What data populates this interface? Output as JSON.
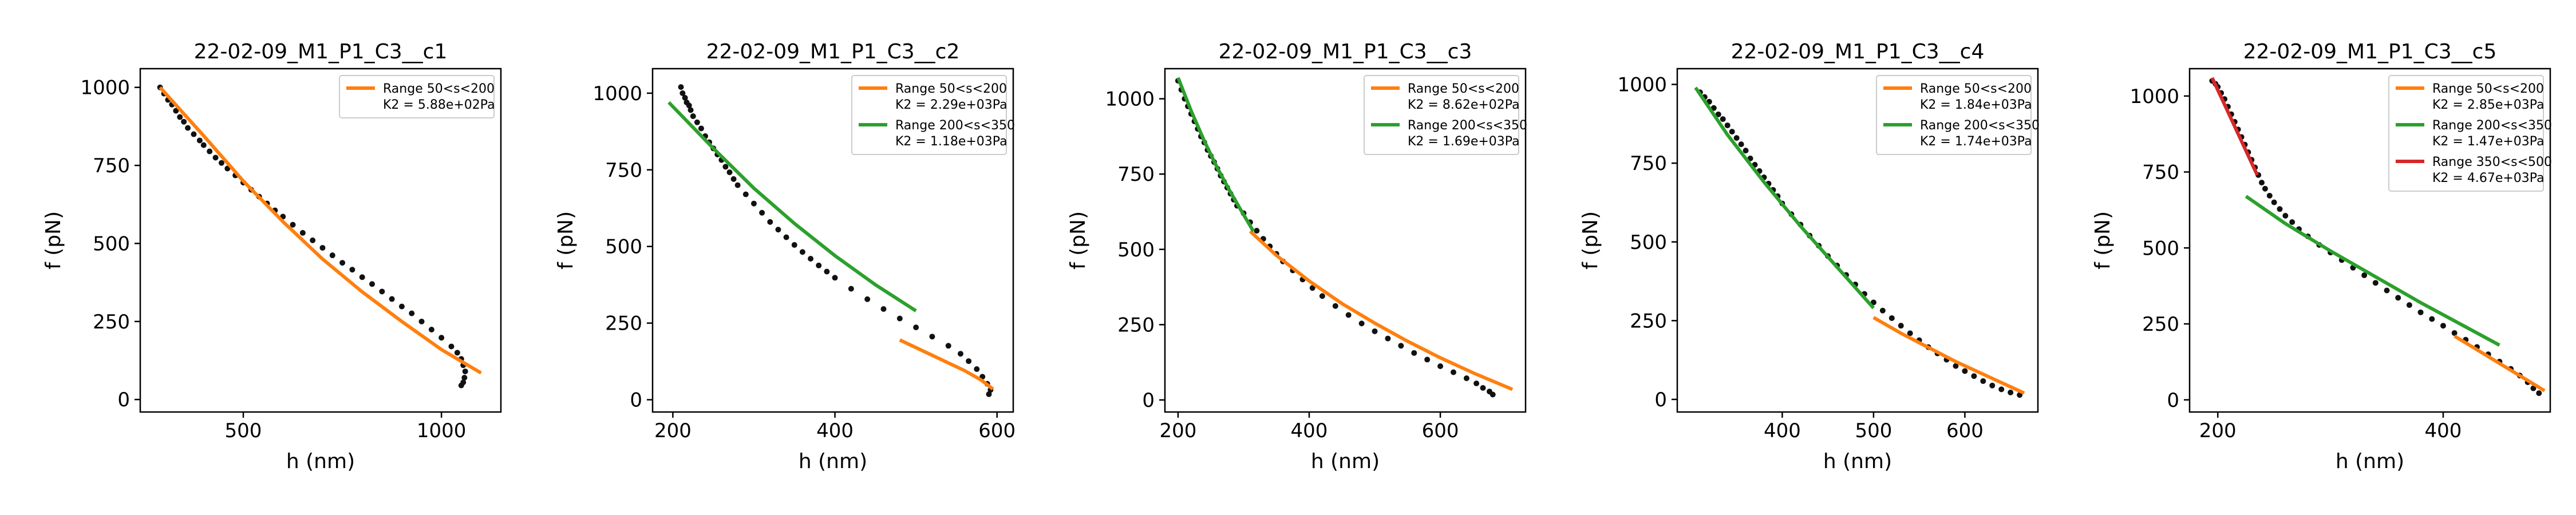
{
  "chart_data": [
    {
      "type": "scatter",
      "title": "22-02-09_M1_P1_C3__c1",
      "xlabel": "h (nm)",
      "ylabel": "f (pN)",
      "xlim": [
        240,
        1150
      ],
      "ylim": [
        -40,
        1060
      ],
      "xticks": [
        500,
        1000
      ],
      "yticks": [
        0,
        250,
        500,
        750,
        1000
      ],
      "legend_position": "top-right",
      "points": [
        [
          290,
          1000
        ],
        [
          300,
          980
        ],
        [
          310,
          960
        ],
        [
          320,
          945
        ],
        [
          330,
          925
        ],
        [
          340,
          905
        ],
        [
          350,
          890
        ],
        [
          360,
          870
        ],
        [
          375,
          850
        ],
        [
          390,
          830
        ],
        [
          400,
          815
        ],
        [
          415,
          795
        ],
        [
          430,
          775
        ],
        [
          445,
          758
        ],
        [
          460,
          740
        ],
        [
          480,
          718
        ],
        [
          500,
          695
        ],
        [
          520,
          672
        ],
        [
          540,
          650
        ],
        [
          560,
          628
        ],
        [
          580,
          606
        ],
        [
          600,
          586
        ],
        [
          625,
          560
        ],
        [
          650,
          534
        ],
        [
          675,
          510
        ],
        [
          700,
          486
        ],
        [
          725,
          462
        ],
        [
          750,
          438
        ],
        [
          775,
          416
        ],
        [
          800,
          392
        ],
        [
          825,
          370
        ],
        [
          850,
          346
        ],
        [
          875,
          322
        ],
        [
          900,
          298
        ],
        [
          925,
          276
        ],
        [
          950,
          250
        ],
        [
          975,
          224
        ],
        [
          1000,
          198
        ],
        [
          1025,
          170
        ],
        [
          1040,
          150
        ],
        [
          1050,
          130
        ],
        [
          1055,
          110
        ],
        [
          1060,
          90
        ],
        [
          1058,
          70
        ],
        [
          1055,
          55
        ],
        [
          1050,
          45
        ]
      ],
      "series": [
        {
          "name": "Range 50<s<200",
          "detail": "K2 = 5.88e+02Pa",
          "color": "#ff7f0e",
          "x": [
            290,
            400,
            500,
            600,
            700,
            800,
            900,
            1000,
            1100
          ],
          "y": [
            1000,
            845,
            700,
            570,
            450,
            345,
            250,
            160,
            85
          ]
        }
      ]
    },
    {
      "type": "scatter",
      "title": "22-02-09_M1_P1_C3__c2",
      "xlabel": "h (nm)",
      "ylabel": "f (pN)",
      "xlim": [
        175,
        620
      ],
      "ylim": [
        -40,
        1080
      ],
      "xticks": [
        200,
        400,
        600
      ],
      "yticks": [
        0,
        250,
        500,
        750,
        1000
      ],
      "legend_position": "top-right",
      "points": [
        [
          210,
          1020
        ],
        [
          212,
          1000
        ],
        [
          215,
          985
        ],
        [
          217,
          970
        ],
        [
          220,
          960
        ],
        [
          222,
          945
        ],
        [
          225,
          925
        ],
        [
          230,
          905
        ],
        [
          235,
          885
        ],
        [
          240,
          860
        ],
        [
          245,
          840
        ],
        [
          250,
          820
        ],
        [
          255,
          800
        ],
        [
          260,
          782
        ],
        [
          265,
          760
        ],
        [
          270,
          742
        ],
        [
          275,
          720
        ],
        [
          280,
          700
        ],
        [
          290,
          670
        ],
        [
          300,
          640
        ],
        [
          310,
          610
        ],
        [
          320,
          580
        ],
        [
          330,
          555
        ],
        [
          340,
          530
        ],
        [
          350,
          505
        ],
        [
          360,
          482
        ],
        [
          370,
          460
        ],
        [
          380,
          438
        ],
        [
          390,
          418
        ],
        [
          400,
          398
        ],
        [
          420,
          362
        ],
        [
          440,
          328
        ],
        [
          460,
          296
        ],
        [
          480,
          265
        ],
        [
          500,
          236
        ],
        [
          520,
          206
        ],
        [
          540,
          176
        ],
        [
          555,
          150
        ],
        [
          565,
          126
        ],
        [
          575,
          100
        ],
        [
          582,
          75
        ],
        [
          588,
          52
        ],
        [
          592,
          32
        ],
        [
          590,
          18
        ]
      ],
      "series": [
        {
          "name": "Range 50<s<200",
          "detail": "K2 = 2.29e+03Pa",
          "color": "#ff7f0e",
          "x": [
            480,
            500,
            520,
            540,
            560,
            580,
            595
          ],
          "y": [
            195,
            170,
            145,
            120,
            95,
            65,
            35
          ]
        },
        {
          "name": "Range 200<s<350",
          "detail": "K2 = 1.18e+03Pa",
          "color": "#2ca02c",
          "x": [
            195,
            250,
            300,
            350,
            400,
            450,
            500
          ],
          "y": [
            970,
            820,
            690,
            575,
            470,
            375,
            290
          ]
        }
      ]
    },
    {
      "type": "scatter",
      "title": "22-02-09_M1_P1_C3__c3",
      "xlabel": "h (nm)",
      "ylabel": "f (pN)",
      "xlim": [
        180,
        730
      ],
      "ylim": [
        -40,
        1100
      ],
      "xticks": [
        200,
        400,
        600
      ],
      "yticks": [
        0,
        250,
        500,
        750,
        1000
      ],
      "legend_position": "top-right",
      "points": [
        [
          200,
          1060
        ],
        [
          205,
          1030
        ],
        [
          210,
          1000
        ],
        [
          215,
          975
        ],
        [
          220,
          950
        ],
        [
          225,
          925
        ],
        [
          230,
          900
        ],
        [
          235,
          875
        ],
        [
          240,
          855
        ],
        [
          245,
          830
        ],
        [
          250,
          810
        ],
        [
          255,
          790
        ],
        [
          260,
          768
        ],
        [
          265,
          745
        ],
        [
          270,
          725
        ],
        [
          275,
          705
        ],
        [
          280,
          685
        ],
        [
          285,
          665
        ],
        [
          290,
          645
        ],
        [
          300,
          620
        ],
        [
          310,
          590
        ],
        [
          320,
          562
        ],
        [
          330,
          535
        ],
        [
          340,
          510
        ],
        [
          350,
          485
        ],
        [
          360,
          460
        ],
        [
          375,
          430
        ],
        [
          390,
          400
        ],
        [
          405,
          372
        ],
        [
          420,
          345
        ],
        [
          440,
          312
        ],
        [
          460,
          282
        ],
        [
          480,
          254
        ],
        [
          500,
          228
        ],
        [
          520,
          204
        ],
        [
          540,
          180
        ],
        [
          560,
          156
        ],
        [
          580,
          134
        ],
        [
          600,
          112
        ],
        [
          620,
          92
        ],
        [
          640,
          72
        ],
        [
          655,
          55
        ],
        [
          665,
          40
        ],
        [
          675,
          28
        ],
        [
          680,
          18
        ]
      ],
      "series": [
        {
          "name": "Range 50<s<200",
          "detail": "K2 = 8.62e+02Pa",
          "color": "#ff7f0e",
          "x": [
            310,
            350,
            400,
            450,
            500,
            550,
            600,
            650,
            710
          ],
          "y": [
            560,
            480,
            395,
            320,
            255,
            195,
            140,
            90,
            35
          ]
        },
        {
          "name": "Range 200<s<350",
          "detail": "K2 = 1.69e+03Pa",
          "color": "#2ca02c",
          "x": [
            200,
            220,
            240,
            260,
            280,
            300,
            315
          ],
          "y": [
            1070,
            960,
            860,
            770,
            690,
            615,
            560
          ]
        }
      ]
    },
    {
      "type": "scatter",
      "title": "22-02-09_M1_P1_C3__c4",
      "xlabel": "h (nm)",
      "ylabel": "f (pN)",
      "xlim": [
        285,
        680
      ],
      "ylim": [
        -40,
        1050
      ],
      "xticks": [
        400,
        500,
        600
      ],
      "yticks": [
        0,
        250,
        500,
        750,
        1000
      ],
      "legend_position": "top-right",
      "points": [
        [
          310,
          975
        ],
        [
          315,
          960
        ],
        [
          320,
          945
        ],
        [
          325,
          925
        ],
        [
          330,
          905
        ],
        [
          335,
          890
        ],
        [
          340,
          870
        ],
        [
          345,
          850
        ],
        [
          350,
          830
        ],
        [
          355,
          810
        ],
        [
          360,
          790
        ],
        [
          365,
          765
        ],
        [
          370,
          745
        ],
        [
          375,
          725
        ],
        [
          380,
          705
        ],
        [
          385,
          685
        ],
        [
          390,
          665
        ],
        [
          395,
          645
        ],
        [
          400,
          622
        ],
        [
          410,
          588
        ],
        [
          420,
          555
        ],
        [
          430,
          520
        ],
        [
          440,
          488
        ],
        [
          450,
          455
        ],
        [
          460,
          425
        ],
        [
          470,
          395
        ],
        [
          480,
          365
        ],
        [
          490,
          335
        ],
        [
          500,
          308
        ],
        [
          510,
          282
        ],
        [
          520,
          258
        ],
        [
          530,
          234
        ],
        [
          540,
          210
        ],
        [
          550,
          188
        ],
        [
          560,
          166
        ],
        [
          570,
          146
        ],
        [
          580,
          126
        ],
        [
          590,
          106
        ],
        [
          600,
          90
        ],
        [
          610,
          74
        ],
        [
          620,
          58
        ],
        [
          630,
          44
        ],
        [
          640,
          32
        ],
        [
          650,
          22
        ],
        [
          660,
          14
        ]
      ],
      "series": [
        {
          "name": "Range 50<s<200",
          "detail": "K2 = 1.84e+03Pa",
          "color": "#ff7f0e",
          "x": [
            500,
            530,
            560,
            590,
            620,
            650,
            665
          ],
          "y": [
            260,
            210,
            165,
            120,
            80,
            40,
            20
          ]
        },
        {
          "name": "Range 200<s<350",
          "detail": "K2 = 1.74e+03Pa",
          "color": "#2ca02c",
          "x": [
            305,
            340,
            380,
            420,
            460,
            500
          ],
          "y": [
            990,
            840,
            690,
            550,
            420,
            290
          ]
        }
      ]
    },
    {
      "type": "scatter",
      "title": "22-02-09_M1_P1_C3__c5",
      "xlabel": "h (nm)",
      "ylabel": "f (pN)",
      "xlim": [
        175,
        495
      ],
      "ylim": [
        -40,
        1090
      ],
      "xticks": [
        200,
        400
      ],
      "yticks": [
        0,
        250,
        500,
        750,
        1000
      ],
      "legend_position": "top-right",
      "points": [
        [
          195,
          1050
        ],
        [
          198,
          1040
        ],
        [
          200,
          1030
        ],
        [
          203,
          1010
        ],
        [
          206,
          990
        ],
        [
          209,
          965
        ],
        [
          212,
          940
        ],
        [
          215,
          915
        ],
        [
          218,
          890
        ],
        [
          221,
          865
        ],
        [
          224,
          840
        ],
        [
          227,
          815
        ],
        [
          230,
          790
        ],
        [
          233,
          765
        ],
        [
          236,
          740
        ],
        [
          239,
          715
        ],
        [
          242,
          695
        ],
        [
          246,
          672
        ],
        [
          250,
          650
        ],
        [
          255,
          628
        ],
        [
          260,
          606
        ],
        [
          266,
          585
        ],
        [
          272,
          562
        ],
        [
          280,
          538
        ],
        [
          290,
          510
        ],
        [
          300,
          485
        ],
        [
          310,
          460
        ],
        [
          320,
          435
        ],
        [
          330,
          410
        ],
        [
          340,
          385
        ],
        [
          350,
          360
        ],
        [
          360,
          336
        ],
        [
          370,
          312
        ],
        [
          380,
          288
        ],
        [
          390,
          266
        ],
        [
          400,
          244
        ],
        [
          410,
          220
        ],
        [
          420,
          198
        ],
        [
          430,
          174
        ],
        [
          440,
          150
        ],
        [
          450,
          126
        ],
        [
          460,
          102
        ],
        [
          468,
          80
        ],
        [
          475,
          58
        ],
        [
          480,
          38
        ],
        [
          485,
          22
        ]
      ],
      "series": [
        {
          "name": "Range 50<s<200",
          "detail": "K2 = 2.85e+03Pa",
          "color": "#ff7f0e",
          "x": [
            410,
            430,
            450,
            470,
            490
          ],
          "y": [
            210,
            165,
            120,
            75,
            30
          ]
        },
        {
          "name": "Range 200<s<350",
          "detail": "K2 = 1.47e+03Pa",
          "color": "#2ca02c",
          "x": [
            225,
            260,
            300,
            340,
            380,
            420,
            450
          ],
          "y": [
            670,
            580,
            490,
            405,
            320,
            240,
            180
          ]
        },
        {
          "name": "Range 350<s<500",
          "detail": "K2 = 4.67e+03Pa",
          "color": "#d62728",
          "x": [
            195,
            205,
            215,
            225,
            235
          ],
          "y": [
            1060,
            980,
            900,
            820,
            740
          ]
        }
      ]
    }
  ]
}
